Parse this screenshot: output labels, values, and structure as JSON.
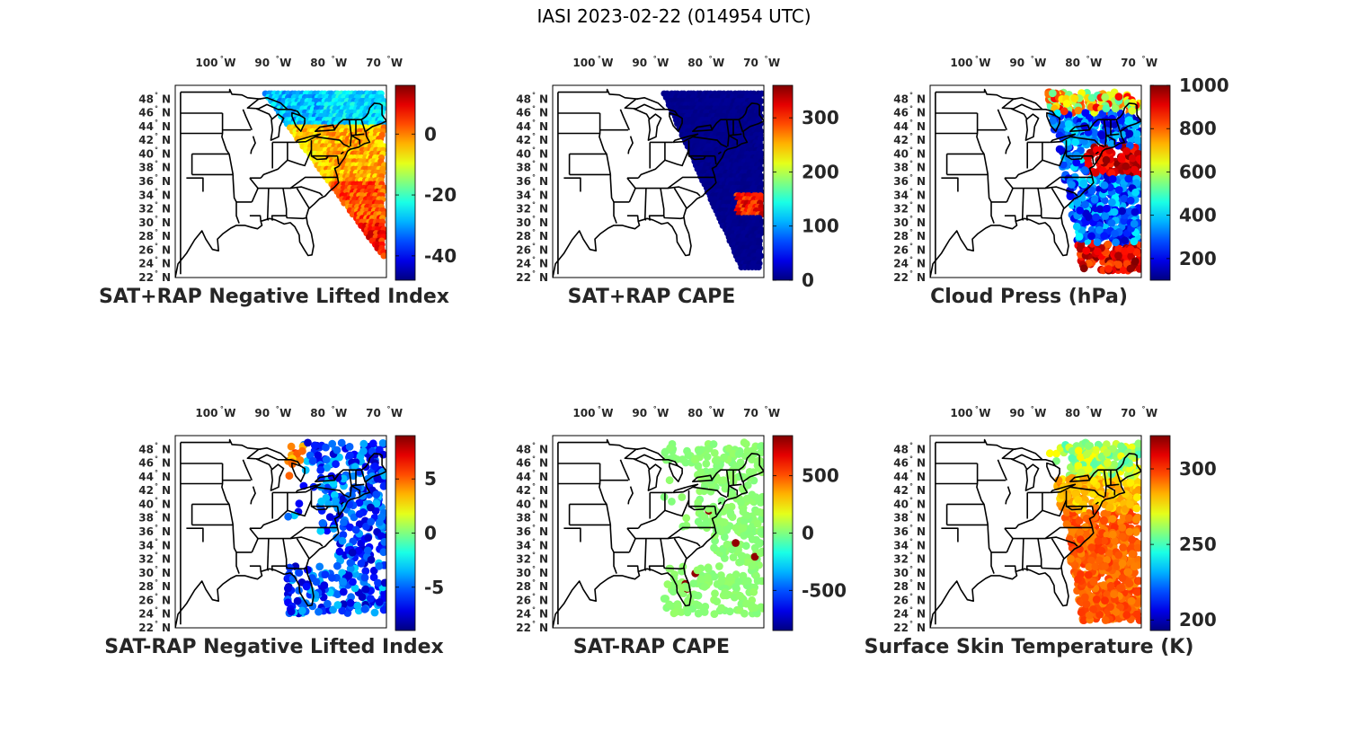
{
  "figure": {
    "title": "IASI 2023-02-22 (014954 UTC)"
  },
  "map": {
    "lon_ticks": [
      {
        "value": -100,
        "label": "100",
        "hemi": "W"
      },
      {
        "value": -90,
        "label": "90",
        "hemi": "W"
      },
      {
        "value": -80,
        "label": "80",
        "hemi": "W"
      },
      {
        "value": -70,
        "label": "70",
        "hemi": "W"
      }
    ],
    "lat_ticks": [
      {
        "value": 48,
        "label": "48",
        "hemi": "N"
      },
      {
        "value": 46,
        "label": "46",
        "hemi": "N"
      },
      {
        "value": 44,
        "label": "44",
        "hemi": "N"
      },
      {
        "value": 42,
        "label": "42",
        "hemi": "N"
      },
      {
        "value": 40,
        "label": "40",
        "hemi": "N"
      },
      {
        "value": 38,
        "label": "38",
        "hemi": "N"
      },
      {
        "value": 36,
        "label": "36",
        "hemi": "N"
      },
      {
        "value": 34,
        "label": "34",
        "hemi": "N"
      },
      {
        "value": 32,
        "label": "32",
        "hemi": "N"
      },
      {
        "value": 30,
        "label": "30",
        "hemi": "N"
      },
      {
        "value": 28,
        "label": "28",
        "hemi": "N"
      },
      {
        "value": 26,
        "label": "26",
        "hemi": "N"
      },
      {
        "value": 24,
        "label": "24",
        "hemi": "N"
      },
      {
        "value": 22,
        "label": "22",
        "hemi": "N"
      }
    ],
    "lon_range": [
      -105,
      -67
    ],
    "lat_range": [
      22,
      50
    ],
    "colormap": "jet"
  },
  "chart_data": [
    {
      "type": "scatter",
      "title": "SAT+RAP Negative Lifted Index",
      "colorbar": {
        "ticks": [
          0,
          -20,
          -40
        ],
        "clim": [
          -48,
          16
        ]
      },
      "field": "nli"
    },
    {
      "type": "scatter",
      "title": "SAT+RAP CAPE",
      "colorbar": {
        "ticks": [
          300,
          200,
          100,
          0
        ],
        "clim": [
          0,
          360
        ]
      },
      "field": "cape"
    },
    {
      "type": "scatter",
      "title": "Cloud Press (hPa)",
      "colorbar": {
        "ticks": [
          1000,
          800,
          600,
          400,
          200
        ],
        "clim": [
          100,
          1000
        ]
      },
      "field": "cloud"
    },
    {
      "type": "scatter",
      "title": "SAT-RAP Negative Lifted Index",
      "colorbar": {
        "ticks": [
          5,
          0,
          -5
        ],
        "clim": [
          -9,
          9
        ]
      },
      "field": "dnli"
    },
    {
      "type": "scatter",
      "title": "SAT-RAP CAPE",
      "colorbar": {
        "ticks": [
          500,
          0,
          -500
        ],
        "clim": [
          -850,
          850
        ]
      },
      "field": "dcape"
    },
    {
      "type": "scatter",
      "title": "Surface Skin Temperature (K)",
      "colorbar": {
        "ticks": [
          300,
          250,
          200
        ],
        "clim": [
          193,
          322
        ]
      },
      "field": "skt"
    }
  ]
}
